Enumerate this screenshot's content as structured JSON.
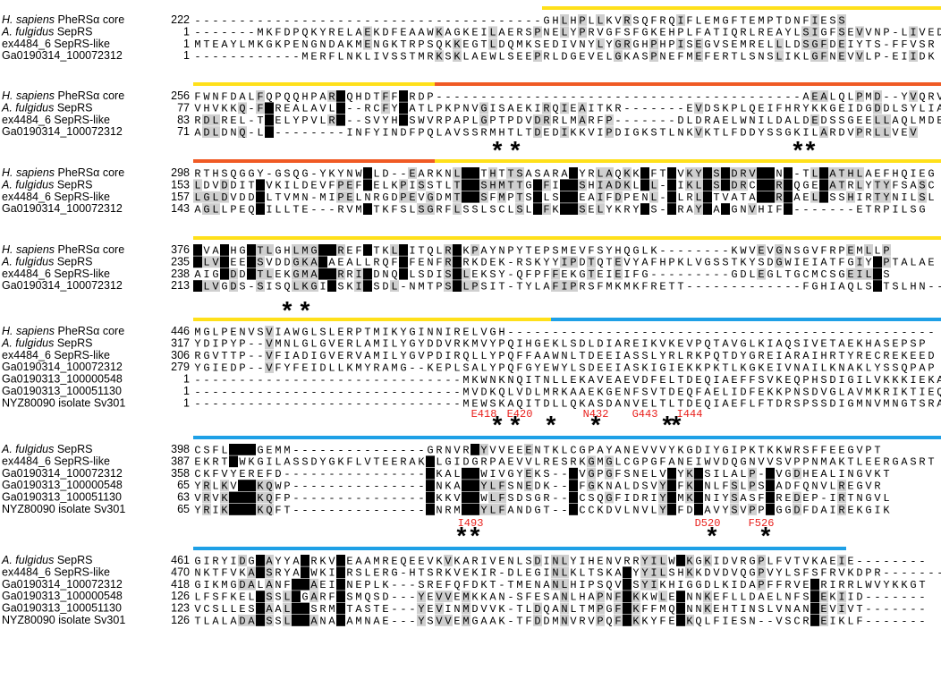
{
  "colors": {
    "yellow": "#ffe01a",
    "orange": "#f05a24",
    "blue": "#1ea0e6",
    "label_red": "#e8201c",
    "identical": "#000000",
    "similar": "#cfcfcf"
  },
  "blocks": [
    {
      "rows": [
        {
          "name": "H. sapiens PheRSα core",
          "start": "222",
          "seq": "---------------------------------------GHLHPLLKVRSQFRQIFLEMGFTEMPTDNFIESS"
        },
        {
          "name": "A. fulgidus SepRS",
          "start": "1",
          "seq": "-------MKFDPQKYRELAEKDFEAAWKAGKEILAERSPNELYPRVGFSFGKEHPLFATIQRLREAYLSIGFSEVVNP-LIVED"
        },
        {
          "name": "ex4484_6 SepRS-like",
          "start": "1",
          "seq": "MTEAYLMKGKPENGNDAKMENGKTRPSQKKEGTLDQMKSEDIVNYLYGRGHPHPISEGVSEMRELLLDSGFDEIYTS-FFVSR"
        },
        {
          "name": "Ga0190314_100072312",
          "start": "1",
          "seq": "------------MERFLNKLIVSSTMRKSKLAEWLSEEPRLDGEVELGKASPNEFMEFERTLSNSLIKLGFNEVVLP-EIIDK"
        }
      ],
      "bars": [
        {
          "color": "yellow",
          "from": 39,
          "to": 84
        }
      ],
      "stars": [],
      "labels": []
    },
    {
      "rows": [
        {
          "name": "H. sapiens PheRSα core",
          "start": "256",
          "seq": "FWNFDALFQPQQHPARDQHDTFFLRDP-----------------------------------------AEALQLPMD--YVQRVK"
        },
        {
          "name": "A. fulgidus SepRS",
          "start": "77",
          "seq": "VHVKKQ-FGREALAVLD--RCFYLATLPKPNVGISAEKIRQIEAITKR-------EVDSKPLQEIFHRYKKGEIDGDDLSYLIAEV"
        },
        {
          "name": "ex4484_6 SepRS-like",
          "start": "83",
          "seq": "RDLREL-TGELYPVLRD--SVYHLSWVRPAPLGPTPDVDRRLMARFP-------DLDRAELWNILDALDEDSSGEELLAQLMDE"
        },
        {
          "name": "Ga0190314_100072312",
          "start": "71",
          "seq": "ADLDNQ-LG--------INFYINDFPQLAVSSRMHTLTDEDIKKVIPDIGKSTLNKVKTLFDDYSSGKILARDVPRLLVEV"
        }
      ],
      "bars": [
        {
          "color": "yellow",
          "from": 0,
          "to": 27
        },
        {
          "color": "orange",
          "from": 27,
          "to": 84
        }
      ],
      "stars": [],
      "labels": []
    },
    {
      "rows": [
        {
          "name": "H. sapiens PheRSα core",
          "start": "298",
          "seq": "RTHSQGGY-GSQG-YKYNWKLD--EARKNLLRTHTTSASARALYRLAQKKPFTPVKYFSIDRVFRNE-TLDATHLAEFHQIEG"
        },
        {
          "name": "A. fulgidus SepRS",
          "start": "153",
          "seq": "LDVDDITAVKILDEVFPEFKELKPISSTLTLRSHMTTGWFITLSHIADKLPL-PIKLFSIDRCFRREQGEDATRLYTYFSASC"
        },
        {
          "name": "ex4484_6 SepRS-like",
          "start": "157",
          "seq": "LGLDVDDALTVMN-MIPELNRGDPEVGDMTLRSFMPTSWLSTLEAIFDPENL-PLRLFTVATAFRREAELDSSHIRTYNILSL"
        },
        {
          "name": "Ga0190314_100072312",
          "start": "143",
          "seq": "AGLLPEQAILLTE---RVMKTKFSLSGRFLSSLSCLSLWFKTLSELYKRYPS-PRAYFAIGNVHIFE-------ETRPILSG"
        }
      ],
      "bars": [
        {
          "color": "orange",
          "from": 0,
          "to": 27
        },
        {
          "color": "yellow",
          "from": 27,
          "to": 84
        }
      ],
      "stars": [
        {
          "pos": 34
        },
        {
          "pos": 36
        },
        {
          "pos": 67.6
        },
        {
          "pos": 69
        }
      ],
      "labels": []
    },
    {
      "rows": [
        {
          "name": "H. sapiens PheRSα core",
          "start": "376",
          "seq": "VVADHGLTLGHLMGVLREFFTKLGITQLRFKPAYNPYTEPSMEVFSYHQGLK--------KWVEVGNSGVFRPEMLLP"
        },
        {
          "name": "A. fulgidus SepRS",
          "start": "235",
          "seq": "VLVDEELSVDDGKAVAEALLRQFGFENFRFRKDEK-RSKYYIPDTQTEVYAFHPKLVGSSTKYSDGWIEIATFGIYSPTALAE"
        },
        {
          "name": "ex4484_6 SepRS-like",
          "start": "238",
          "seq": "AIGDDDLTLEKGMAVLRRIFDNQGLSDISFLEKSY-QFPFFEKGTEIEIFG---------GDLEGLTGCMCSGEILSS"
        },
        {
          "name": "Ga0190314_100072312",
          "start": "213",
          "seq": "VLVGDS-SISQLKGILSKIFSDL-NMTPSFLPSIT-TYLAFIPRSFMKMKFRETT-------------FGHIAQLSSTSLHN---"
        }
      ],
      "bars": [
        {
          "color": "yellow",
          "from": 0,
          "to": 84
        }
      ],
      "stars": [],
      "labels": []
    },
    {
      "rows": [
        {
          "name": "H. sapiens PheRSα core",
          "start": "446",
          "seq": "MGLPENVSVIAWGLSLERPTMIKYGINNIRELVGH------------------------------------------------"
        },
        {
          "name": "A. fulgidus SepRS",
          "start": "317",
          "seq": "YDIPYP--VMNLGLGVERLAMILYGYDDVRKMVYPQIHGEKLSDLDIAREIKVKEVPQTAVGLKIAQSIVETAEKHASEPSP"
        },
        {
          "name": "ex4484_6 SepRS-like",
          "start": "306",
          "seq": "RGVTTP--VFIADIGVERVAMILYGVPDIRQLLYPQFFAAWNLTDEEIASSLYRLRKPQTDYGREIARAIHRTYRECREKEED"
        },
        {
          "name": "Ga0190314_100072312",
          "start": "279",
          "seq": "YGIEDP--VFYFEIDLLKMYRAMG--KEPLSALYPQFGYEWYLSDEEIASKIGIEKKPKTLKGKEIVNAILKNAKLYSSQPAP"
        },
        {
          "name": "Ga0190313_100000548",
          "start": "1",
          "seq": "------------------------------MKWNKNQITNLLEKAVEAEVDFELTDEQIAEFFSVKEQPHSDIGILVKKKIEKAIDENYNKPAP"
        },
        {
          "name": "Ga0190313_100051130",
          "start": "1",
          "seq": "------------------------------MVDKQLVDLMRKAAEKGENFSVTDEQFAELIDFEKKPNSDVGLAVMKRIKTIEQHYNKPAP"
        },
        {
          "name": "NYZ80090 isolate Sv301",
          "start": "1",
          "seq": "------------------------------MEWSKAQITDLLQKASDANVELTLTDEQIAEFLFTDRSPSSDIGMNVMNGTSRAILQYGHKNAP"
        }
      ],
      "bars": [
        {
          "color": "yellow",
          "from": 0,
          "to": 40
        },
        {
          "color": "blue",
          "from": 40,
          "to": 84
        }
      ],
      "stars": [
        {
          "pos": 10.5
        },
        {
          "pos": 12.5
        }
      ],
      "labels": []
    },
    {
      "rows": [
        {
          "name": "A. fulgidus SepRS",
          "start": "398",
          "seq": "CSFLAFEGEMM---------------GRNVRVYVVEEENTKLCGPAYANEVVVYKGDIYGIPKTKKWRSFFEEGVPT"
        },
        {
          "name": "ex4484_6 SepRS-like",
          "start": "387",
          "seq": "EKRTAWKGILASSDYGKFLVTEERAKELGIDGRPAEVVLRESRKGMGLCGPGFANEIWVDQGNVVSVPPNMAKTLEERGASRT"
        },
        {
          "name": "Ga0190314_100072312",
          "start": "358",
          "seq": "CKFVYEREFD----------------EKALEVWIVGYEKS--LVGPGFSNELVVYKGSILALP-SVGDHEALINGVKT"
        },
        {
          "name": "Ga0190313_100000548",
          "start": "65",
          "seq": "YRLKVFEKQWP---------------ENKAEVYLFSNEDK--LFGKNALDSVYVFKGNLFSLPSSADFQNVLREGVR"
        },
        {
          "name": "Ga0190313_100051130",
          "start": "63",
          "seq": "VRVKAFEKQFP---------------EKKVEVWLFSDSGR--LCSQGFIDRIYVMKGNIYSASFSREDEP-IRTNGVL"
        },
        {
          "name": "NYZ80090 isolate Sv301",
          "start": "65",
          "seq": "YRIKAFEKQFT---------------ENRMEVYLFANDGT--LCCKDVLNVLYVFDGAVYSVPPSGGDFDAIREKGIK"
        }
      ],
      "bars": [
        {
          "color": "blue",
          "from": 0,
          "to": 84
        }
      ],
      "stars": [
        {
          "pos": 34
        },
        {
          "pos": 36
        },
        {
          "pos": 40
        },
        {
          "pos": 45
        },
        {
          "pos": 53
        },
        {
          "pos": 54
        }
      ],
      "labels": [
        {
          "text": "E418",
          "pos": 32.5
        },
        {
          "text": "E420",
          "pos": 36.5
        },
        {
          "text": "N432",
          "pos": 45
        },
        {
          "text": "G443",
          "pos": 50.5
        },
        {
          "text": "I444",
          "pos": 55.5
        }
      ]
    },
    {
      "rows": [
        {
          "name": "A. fulgidus SepRS",
          "start": "461",
          "seq": "GIRYIDGFAYYAARKVEEAAMREQEEVKVKARIVENLSDINLYIHENVRRYILWKKGKIDVRGPLFVTVKAEIE--------"
        },
        {
          "name": "ex4484_6 SepRS-like",
          "start": "470",
          "seq": "NKTFVKAFSRYAAWKIERSLERG-HTSRKVEKIR-DLEGINLKLTSKALYYILSHKKDVDVQGPVYLSFSFRVKDPR-------"
        },
        {
          "name": "Ga0190314_100072312",
          "start": "418",
          "seq": "GIKMGDALANFVAAEIENEPLK---SREFQFDKT-TMENANLHIPSQVLSYIKHIGGDLKIDAPFFRVEARIRRLWVYKKGT"
        },
        {
          "name": "Ga0190313_100000548",
          "start": "126",
          "seq": "LFSFKELFSSLVGARFESMQSD---YEVVEMKKAN-SFESANLHAPNFLKKWLEKNNKEFLLDAELNFSAEKIID-------"
        },
        {
          "name": "Ga0190313_100051130",
          "start": "123",
          "seq": "VCSLLESFAALVASRMETASTE---YEVINMDVVK-TLDQANLTMPGFLKFFMQKNNKEHTINSLVNANAEVIVT-------"
        },
        {
          "name": "NYZ80090 isolate Sv301",
          "start": "126",
          "seq": "TLALADAFSSLVAANAEAMNAE---YSVVEMGAAK-TFDDMNVRVPQFLKKYFEKKQLFIESN--VSCRAEIKLF-------"
        }
      ],
      "bars": [
        {
          "color": "blue",
          "from": 0,
          "to": 73
        }
      ],
      "stars": [
        {
          "pos": 30
        },
        {
          "pos": 31.5
        },
        {
          "pos": 58
        },
        {
          "pos": 64
        }
      ],
      "labels": [
        {
          "text": "I493",
          "pos": 31
        },
        {
          "text": "D520",
          "pos": 57.5
        },
        {
          "text": "F526",
          "pos": 63.5
        }
      ]
    }
  ]
}
